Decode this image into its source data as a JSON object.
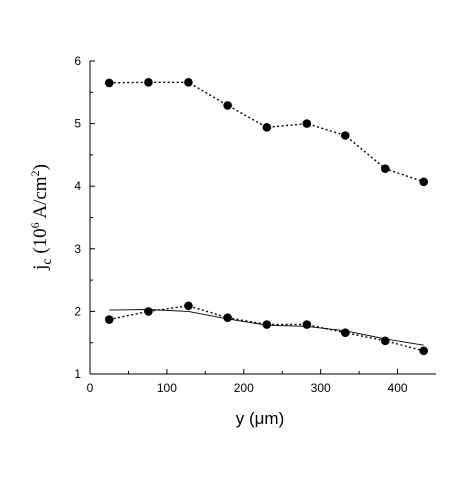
{
  "chart_data": {
    "type": "line",
    "xlabel": {
      "base": "y (",
      "unit": "μm",
      "suffix": ")"
    },
    "ylabel": {
      "j": "j",
      "sub": "c",
      "open": " (10",
      "exp": "6",
      "mid": " A/cm",
      "exp2": "2",
      "close": ")"
    },
    "xlim": [
      0,
      450
    ],
    "ylim": [
      1,
      6
    ],
    "xticks": [
      0,
      100,
      200,
      300,
      400
    ],
    "yticks": [
      1,
      2,
      3,
      4,
      5,
      6
    ],
    "series": [
      {
        "style": "dotted-with-markers",
        "x": [
          25,
          76,
          128,
          179,
          230,
          282,
          332,
          384,
          434
        ],
        "y": [
          5.65,
          5.66,
          5.66,
          5.29,
          4.94,
          5.0,
          4.81,
          4.28,
          4.07
        ]
      },
      {
        "style": "dotted-with-markers",
        "x": [
          25,
          76,
          128,
          179,
          230,
          282,
          332,
          384,
          434
        ],
        "y": [
          1.87,
          2.0,
          2.09,
          1.9,
          1.79,
          1.79,
          1.66,
          1.53,
          1.37
        ]
      },
      {
        "style": "solid-thin",
        "x": [
          25,
          76,
          128,
          179,
          230,
          282,
          332,
          384,
          434
        ],
        "y": [
          2.02,
          2.03,
          2.0,
          1.88,
          1.78,
          1.76,
          1.69,
          1.56,
          1.46
        ]
      }
    ]
  }
}
